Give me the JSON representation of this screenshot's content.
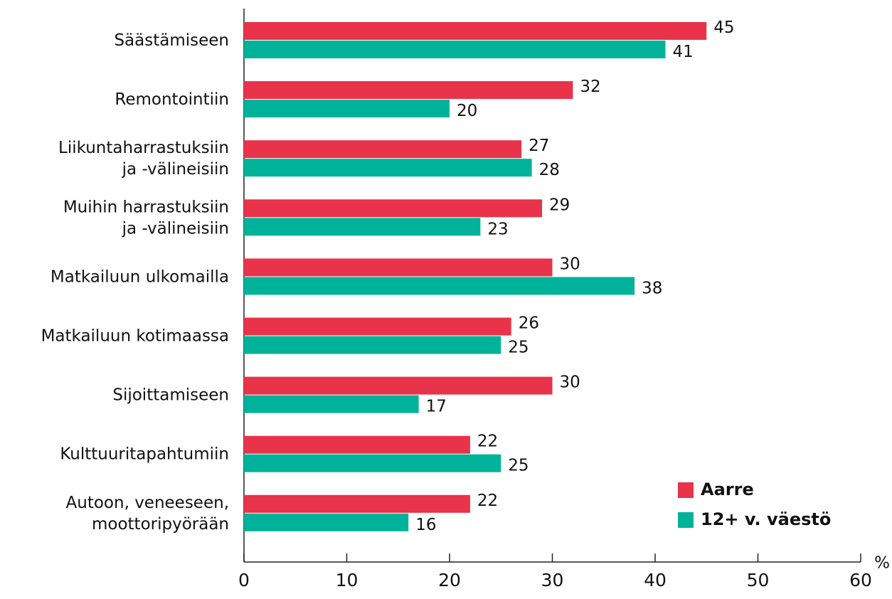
{
  "chart_data": {
    "type": "bar",
    "orientation": "horizontal",
    "categories": [
      [
        "Säästämiseen"
      ],
      [
        "Remontointiin"
      ],
      [
        "Liikuntaharrastuksiin",
        "ja -välineisiin"
      ],
      [
        "Muihin harrastuksiin",
        "ja -välineisiin"
      ],
      [
        "Matkailuun ulkomailla"
      ],
      [
        "Matkailuun kotimaassa"
      ],
      [
        "Sijoittamiseen"
      ],
      [
        "Kulttuuritapahtumiin"
      ],
      [
        "Autoon, veneeseen,",
        "moottoripyörään"
      ]
    ],
    "series": [
      {
        "name": "Aarre",
        "color": "#e8334a",
        "values": [
          45,
          32,
          27,
          29,
          30,
          26,
          30,
          22,
          22
        ]
      },
      {
        "name": "12+ v. väestö",
        "color": "#00b29a",
        "values": [
          41,
          20,
          28,
          23,
          38,
          25,
          17,
          25,
          16
        ]
      }
    ],
    "xlim": [
      0,
      60
    ],
    "xticks": [
      0,
      10,
      20,
      30,
      40,
      50,
      60
    ],
    "xlabel": "%",
    "legend": "lower right"
  }
}
